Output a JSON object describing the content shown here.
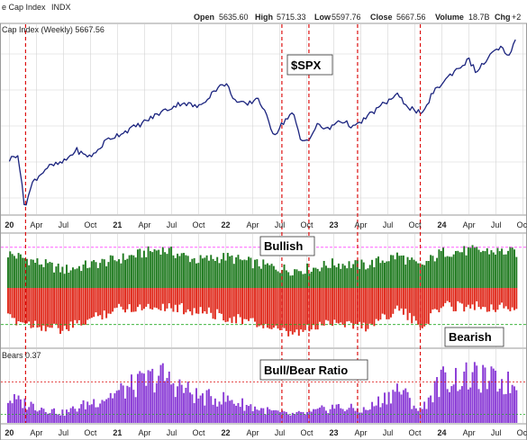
{
  "header": {
    "title": "e Cap Index",
    "exchange": "INDX",
    "open_label": "Open",
    "open": "5635.60",
    "high_label": "High",
    "high": "5715.33",
    "low_label": "Low",
    "low": "5597.76",
    "close_label": "Close",
    "close": "5667.56",
    "volume_label": "Volume",
    "volume": "18.7B",
    "chg_label": "Chg",
    "chg": "+2"
  },
  "legend": {
    "price": "Cap Index (Weekly) 5667.56",
    "ratio": "Bears 0.37"
  },
  "callouts": {
    "spx": "$SPX",
    "bullish": "Bullish",
    "bearish": "Bearish",
    "ratio": "Bull/Bear Ratio"
  },
  "colors": {
    "price_line": "#1a237e",
    "bullish": "#1f7a1f",
    "bearish": "#e0291b",
    "ratio": "#8a3bd6",
    "vline": "#dd1111",
    "grid": "#d4d4d4",
    "bull_ref": "#ff44ff",
    "bear_ref": "#22aa22"
  },
  "chart_data": [
    {
      "type": "line",
      "series_name": "$SPX",
      "x_unit": "year",
      "x": [
        2020.0,
        2020.08,
        2020.14,
        2020.22,
        2020.35,
        2020.5,
        2020.62,
        2020.7,
        2020.78,
        2020.9,
        2021.0,
        2021.2,
        2021.4,
        2021.6,
        2021.75,
        2021.9,
        2022.0,
        2022.1,
        2022.2,
        2022.3,
        2022.45,
        2022.55,
        2022.62,
        2022.7,
        2022.78,
        2022.85,
        2022.95,
        2023.05,
        2023.2,
        2023.3,
        2023.45,
        2023.58,
        2023.7,
        2023.83,
        2023.9,
        2024.0,
        2024.1,
        2024.25,
        2024.32,
        2024.45,
        2024.55,
        2024.6,
        2024.68
      ],
      "y": [
        3250,
        3380,
        2300,
        2820,
        3100,
        3200,
        3450,
        3330,
        3350,
        3650,
        3750,
        3950,
        4200,
        4400,
        4300,
        4650,
        4780,
        4400,
        4350,
        4500,
        3750,
        4050,
        4200,
        3600,
        3700,
        3950,
        3850,
        4050,
        3900,
        4100,
        4350,
        4550,
        4300,
        4150,
        4550,
        4780,
        5000,
        5250,
        5000,
        5350,
        5500,
        5300,
        5620
      ]
    },
    {
      "type": "bar",
      "series_name": "Bullish",
      "x_unit": "year",
      "x_range": [
        2020.0,
        2024.68
      ],
      "note_anchors_x": [
        2020.0,
        2020.5,
        2021.0,
        2021.4,
        2021.75,
        2022.0,
        2022.35,
        2022.6,
        2022.8,
        2023.0,
        2023.3,
        2023.6,
        2023.8,
        2024.0,
        2024.3,
        2024.68
      ],
      "values": [
        42,
        22,
        35,
        48,
        34,
        38,
        28,
        22,
        24,
        30,
        28,
        40,
        26,
        44,
        46,
        44
      ],
      "ylim": [
        0,
        62
      ]
    },
    {
      "type": "bar",
      "series_name": "Bearish",
      "x_unit": "year",
      "note_anchors_x": [
        2020.0,
        2020.5,
        2021.0,
        2021.4,
        2021.75,
        2022.0,
        2022.35,
        2022.6,
        2022.8,
        2023.0,
        2023.3,
        2023.6,
        2023.8,
        2024.0,
        2024.3,
        2024.68
      ],
      "values": [
        38,
        52,
        25,
        22,
        28,
        35,
        46,
        58,
        50,
        40,
        48,
        25,
        48,
        22,
        22,
        25
      ],
      "ylim": [
        0,
        62
      ]
    },
    {
      "type": "bar",
      "series_name": "Bull/Bear Ratio",
      "x_unit": "year",
      "note_anchors_x": [
        2020.0,
        2020.5,
        2021.0,
        2021.4,
        2021.75,
        2022.0,
        2022.35,
        2022.6,
        2022.8,
        2023.0,
        2023.3,
        2023.6,
        2023.8,
        2024.0,
        2024.3,
        2024.68
      ],
      "values": [
        1.1,
        0.45,
        1.4,
        2.2,
        1.2,
        1.1,
        0.6,
        0.38,
        0.48,
        0.75,
        0.58,
        1.6,
        0.55,
        2.0,
        2.1,
        1.75
      ],
      "ylim": [
        0,
        3.0
      ]
    }
  ],
  "x_axis": {
    "ticks": [
      {
        "label": "20",
        "x": 2020.0,
        "year": true
      },
      {
        "label": "Apr",
        "x": 2020.25
      },
      {
        "label": "Jul",
        "x": 2020.5
      },
      {
        "label": "Oct",
        "x": 2020.75
      },
      {
        "label": "21",
        "x": 2021.0,
        "year": true
      },
      {
        "label": "Apr",
        "x": 2021.25
      },
      {
        "label": "Jul",
        "x": 2021.5
      },
      {
        "label": "Oct",
        "x": 2021.75
      },
      {
        "label": "22",
        "x": 2022.0,
        "year": true
      },
      {
        "label": "Apr",
        "x": 2022.25
      },
      {
        "label": "Jul",
        "x": 2022.5
      },
      {
        "label": "Oct",
        "x": 2022.75
      },
      {
        "label": "23",
        "x": 2023.0,
        "year": true
      },
      {
        "label": "Apr",
        "x": 2023.25
      },
      {
        "label": "Jul",
        "x": 2023.5
      },
      {
        "label": "Oct",
        "x": 2023.75
      },
      {
        "label": "24",
        "x": 2024.0,
        "year": true
      },
      {
        "label": "Apr",
        "x": 2024.25
      },
      {
        "label": "Jul",
        "x": 2024.5
      },
      {
        "label": "Oct",
        "x": 2024.75
      }
    ]
  },
  "vertical_markers_x": [
    2020.15,
    2022.52,
    2022.77,
    2023.22,
    2023.8
  ],
  "reference_levels": {
    "bullish_top": 50,
    "bearish_bottom": 45,
    "ratio_top": 1.9,
    "ratio_bottom": 0.4
  }
}
